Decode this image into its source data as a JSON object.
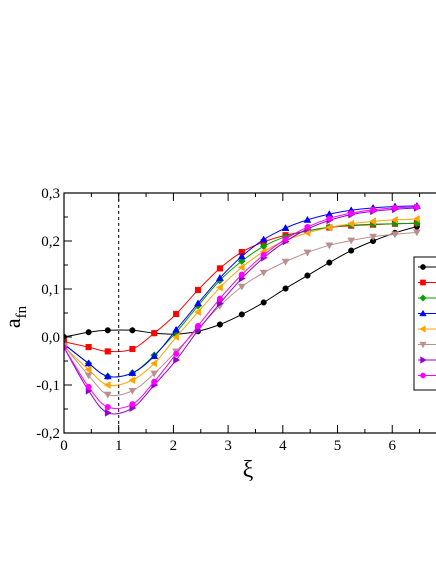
{
  "chart_data": {
    "type": "line",
    "xlabel": "ξ",
    "ylabel": "a",
    "ylabel_sub": "fn",
    "xlim": [
      0,
      6.8
    ],
    "ylim": [
      -0.2,
      0.3
    ],
    "x_ticks": [
      {
        "value": 0,
        "label": "0"
      },
      {
        "value": 1,
        "label": "1"
      },
      {
        "value": 2,
        "label": "2"
      },
      {
        "value": 3,
        "label": "3"
      },
      {
        "value": 4,
        "label": "4"
      },
      {
        "value": 5,
        "label": "5"
      },
      {
        "value": 6,
        "label": "6"
      }
    ],
    "y_ticks": [
      {
        "value": -0.2,
        "label": "-0,2"
      },
      {
        "value": -0.1,
        "label": "-0,1"
      },
      {
        "value": 0.0,
        "label": "0,0"
      },
      {
        "value": 0.1,
        "label": "0,1"
      },
      {
        "value": 0.2,
        "label": "0,2"
      },
      {
        "value": 0.3,
        "label": "0,3"
      }
    ],
    "vline_x": 1.0,
    "grid": false,
    "legend_position": "right",
    "x": [
      0,
      0.45,
      0.8,
      1.25,
      1.65,
      2.05,
      2.45,
      2.85,
      3.25,
      3.65,
      4.05,
      4.45,
      4.85,
      5.25,
      5.65,
      6.05,
      6.45
    ],
    "series": [
      {
        "color": "#000000",
        "marker": "circle",
        "values": [
          0.0,
          0.01,
          0.014,
          0.014,
          0.008,
          0.006,
          0.012,
          0.026,
          0.047,
          0.072,
          0.101,
          0.128,
          0.155,
          0.18,
          0.2,
          0.217,
          0.23
        ]
      },
      {
        "color": "#ff0000",
        "marker": "square",
        "values": [
          -0.01,
          -0.021,
          -0.03,
          -0.025,
          0.008,
          0.048,
          0.098,
          0.143,
          0.177,
          0.198,
          0.212,
          0.221,
          0.228,
          0.232,
          0.234,
          0.236,
          0.237
        ]
      },
      {
        "color": "#00a000",
        "marker": "diamond",
        "values": [
          -0.015,
          -0.055,
          -0.082,
          -0.075,
          -0.038,
          0.01,
          0.065,
          0.118,
          0.158,
          0.189,
          0.209,
          0.221,
          0.229,
          0.233,
          0.235,
          0.236,
          0.237
        ]
      },
      {
        "color": "#0000ff",
        "marker": "triangle-up",
        "values": [
          -0.015,
          -0.055,
          -0.082,
          -0.075,
          -0.04,
          0.015,
          0.07,
          0.123,
          0.168,
          0.203,
          0.227,
          0.244,
          0.256,
          0.264,
          0.269,
          0.272,
          0.273
        ]
      },
      {
        "color": "#ffa500",
        "marker": "triangle-left",
        "values": [
          -0.02,
          -0.068,
          -0.1,
          -0.09,
          -0.055,
          0.0,
          0.052,
          0.103,
          0.145,
          0.178,
          0.201,
          0.217,
          0.228,
          0.236,
          0.241,
          0.244,
          0.246
        ]
      },
      {
        "color": "#bc8f8f",
        "marker": "triangle-down",
        "values": [
          -0.018,
          -0.08,
          -0.12,
          -0.112,
          -0.076,
          -0.03,
          0.017,
          0.065,
          0.105,
          0.134,
          0.157,
          0.176,
          0.191,
          0.201,
          0.209,
          0.214,
          0.218
        ]
      },
      {
        "color": "#9400d3",
        "marker": "triangle-right",
        "values": [
          -0.022,
          -0.112,
          -0.158,
          -0.148,
          -0.1,
          -0.048,
          0.014,
          0.07,
          0.122,
          0.165,
          0.199,
          0.225,
          0.243,
          0.255,
          0.262,
          0.266,
          0.269
        ]
      },
      {
        "color": "#ff00ff",
        "marker": "circle",
        "values": [
          -0.022,
          -0.104,
          -0.146,
          -0.14,
          -0.093,
          -0.035,
          0.023,
          0.08,
          0.13,
          0.171,
          0.204,
          0.229,
          0.247,
          0.258,
          0.265,
          0.269,
          0.271
        ]
      }
    ]
  }
}
